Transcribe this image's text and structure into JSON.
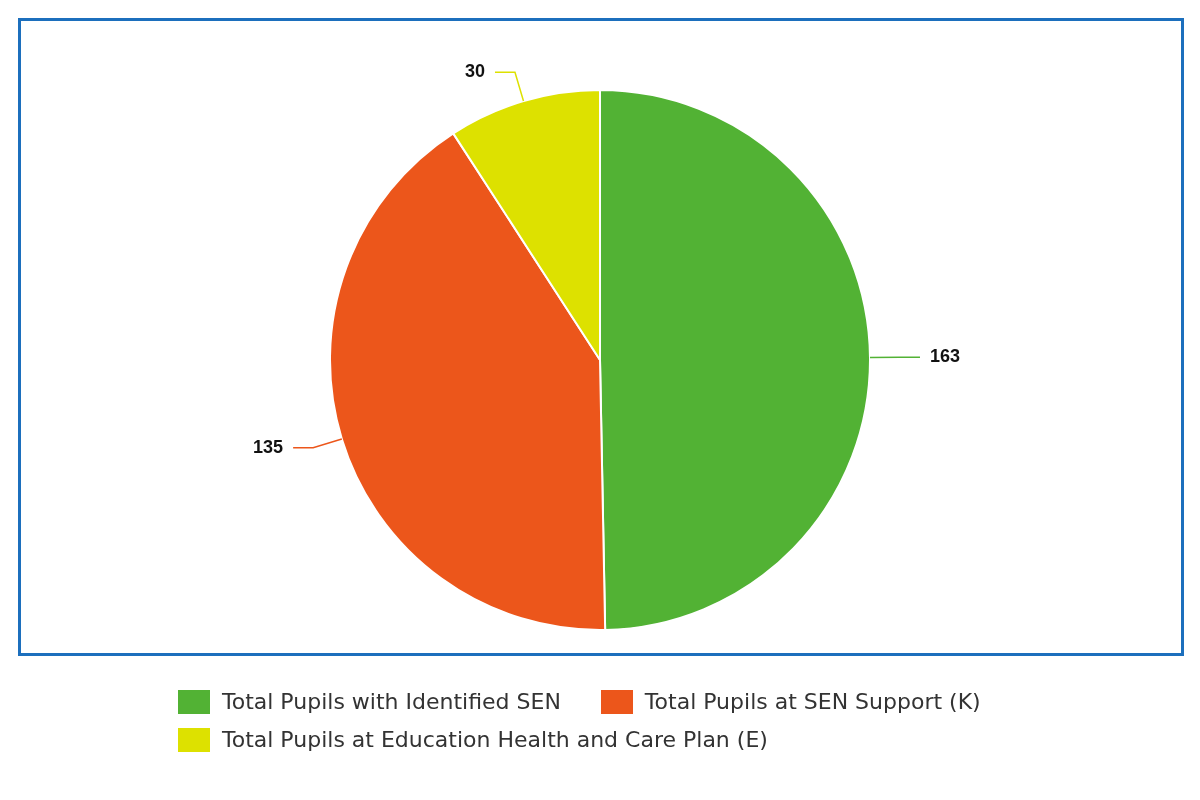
{
  "chart_data": {
    "type": "pie",
    "categories": [
      "Total Pupils with Identified SEN",
      "Total Pupils at SEN Support (K)",
      "Total Pupils at Education Health and Care Plan (E)"
    ],
    "values": [
      163,
      135,
      30
    ],
    "colors": [
      "#52b234",
      "#ec561b",
      "#dde100"
    ],
    "data_labels": true,
    "legend": "bottom"
  }
}
